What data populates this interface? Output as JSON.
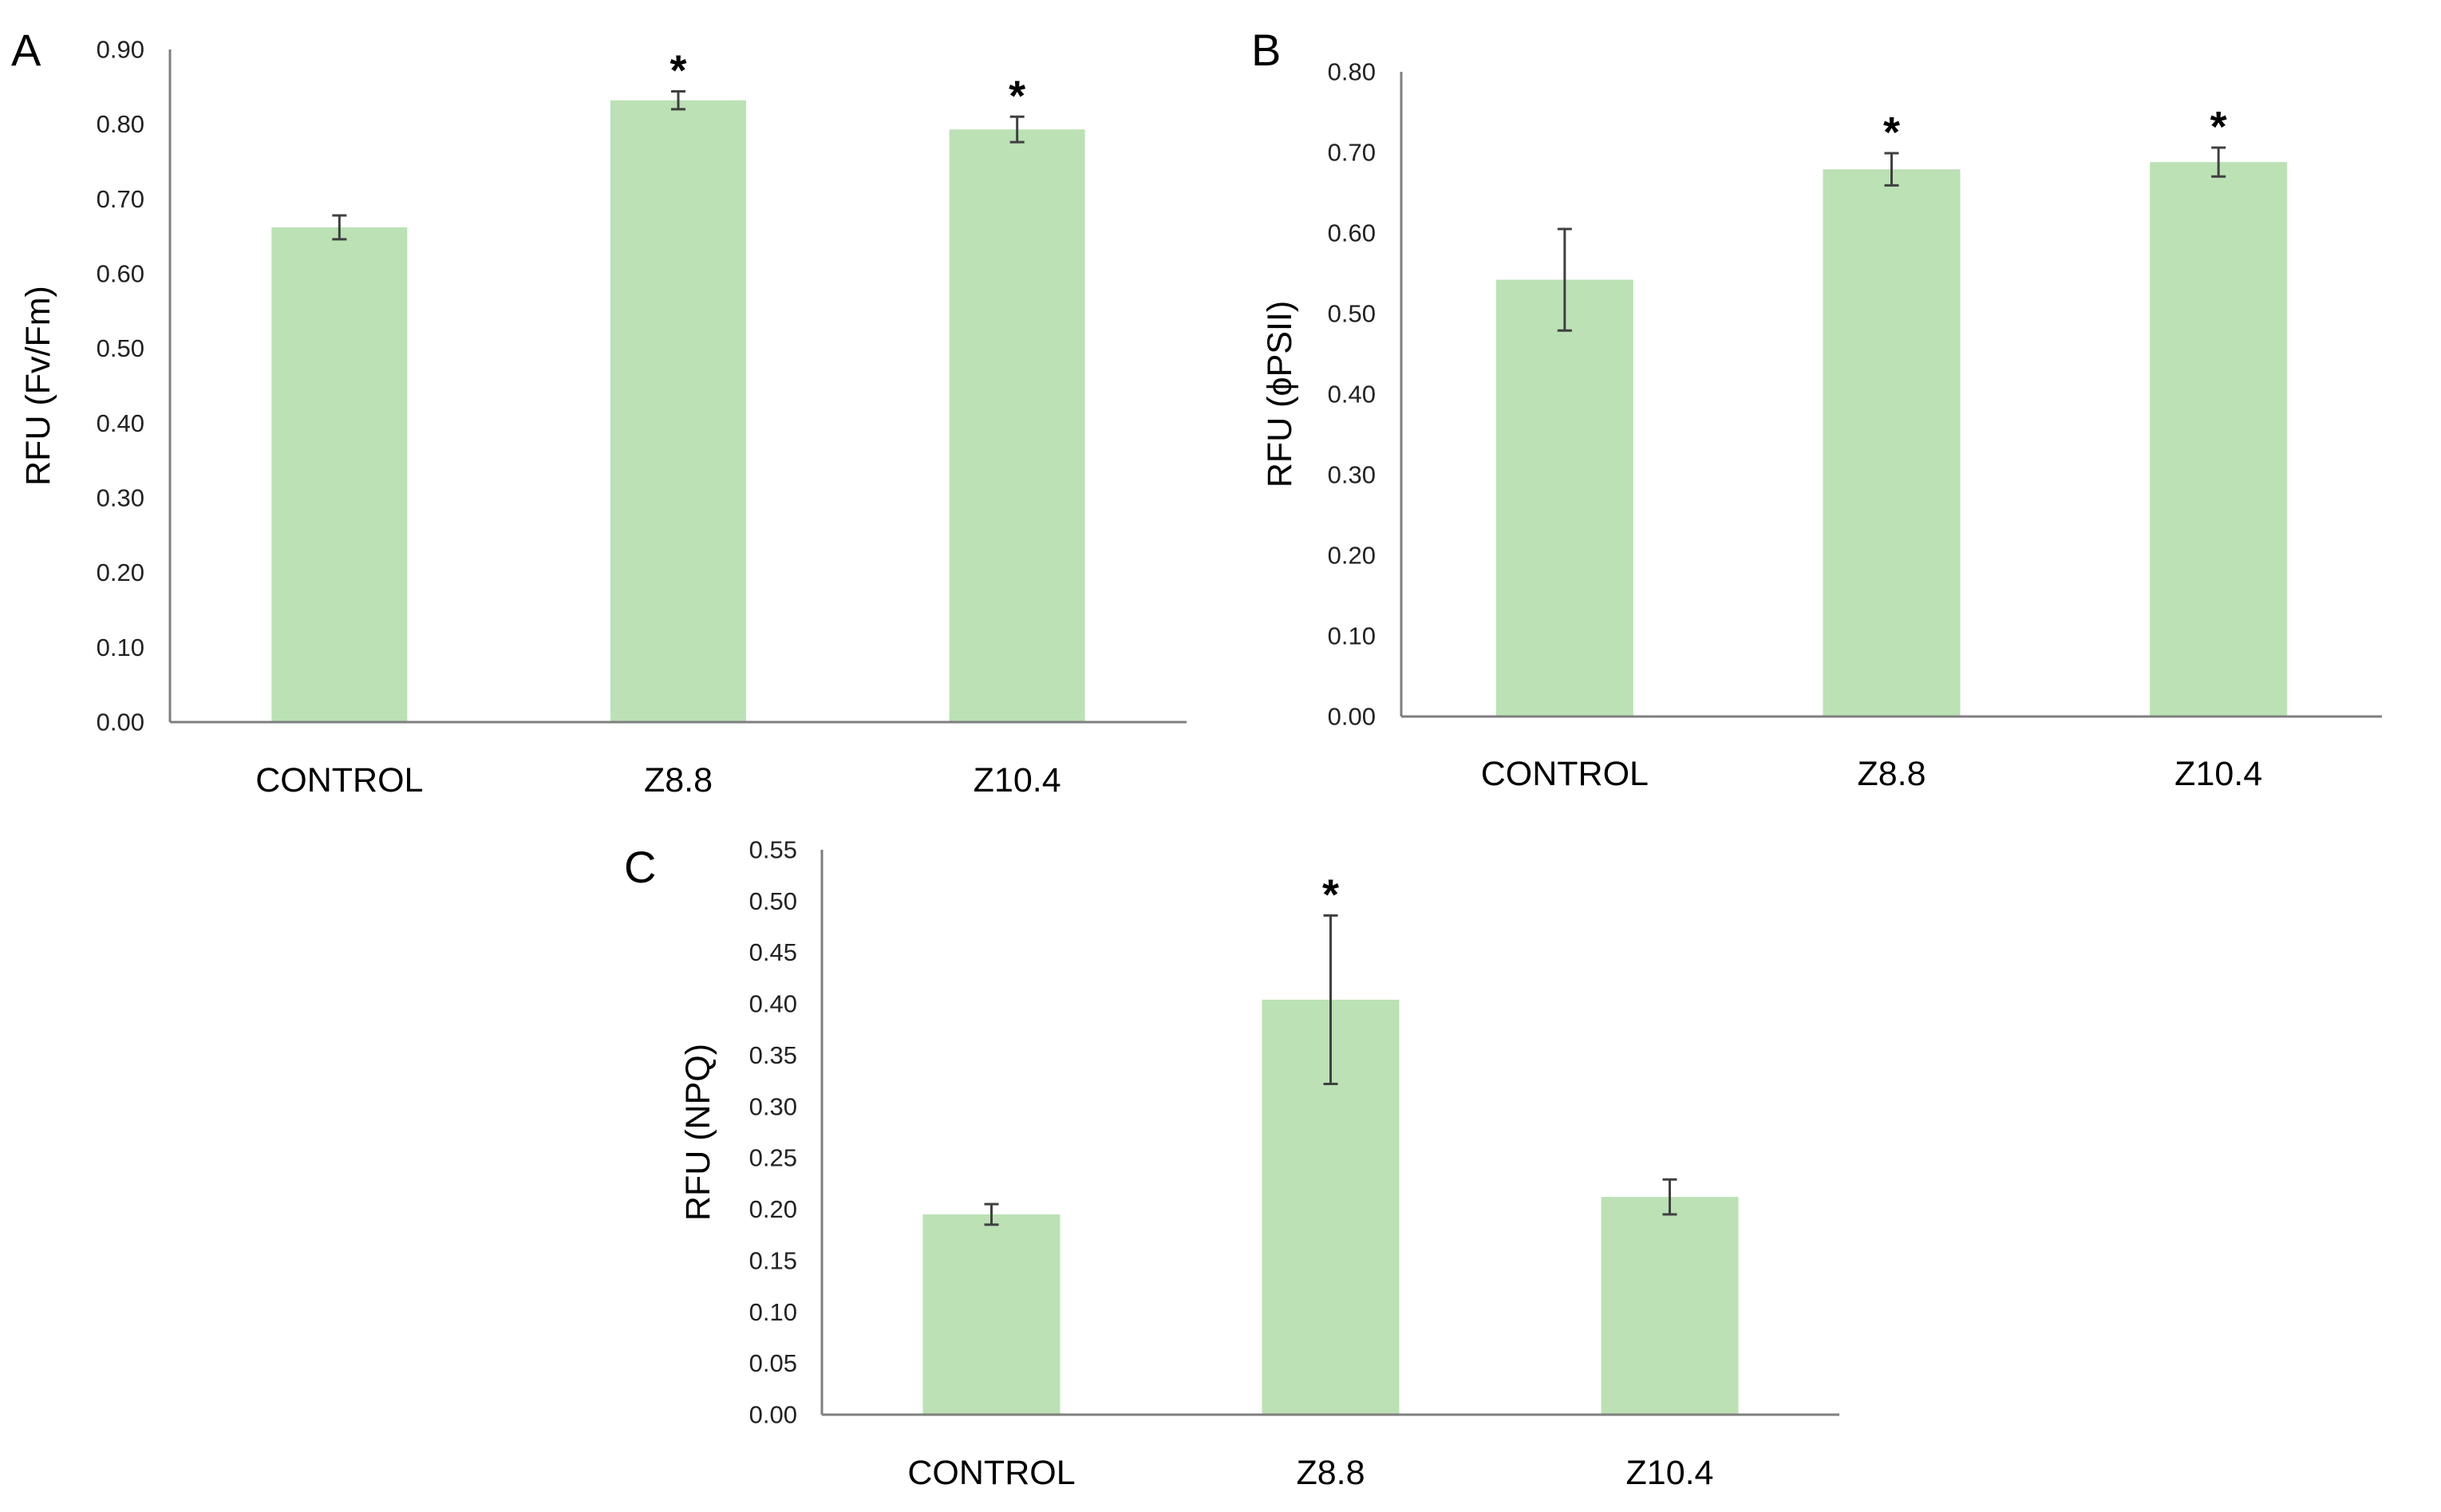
{
  "figure": {
    "bar_color": "#bbe1b5",
    "axis_color": "#7f7f7f",
    "error_color": "#404040"
  },
  "chart_data": [
    {
      "type": "bar",
      "panel": "A",
      "title": "",
      "xlabel": "",
      "ylabel": "RFU (Fv/Fm)",
      "categories": [
        "CONTROL",
        "Z8.8",
        "Z10.4"
      ],
      "values": [
        0.662,
        0.832,
        0.793
      ],
      "errors": [
        0.016,
        0.012,
        0.017
      ],
      "significance": [
        "",
        "*",
        "*"
      ],
      "ylim": [
        0,
        0.9
      ],
      "yticks": [
        "0.00",
        "0.10",
        "0.20",
        "0.30",
        "0.40",
        "0.50",
        "0.60",
        "0.70",
        "0.80",
        "0.90"
      ],
      "grid": false
    },
    {
      "type": "bar",
      "panel": "B",
      "title": "",
      "xlabel": "",
      "ylabel": "RFU (ϕPSII)",
      "categories": [
        "CONTROL",
        "Z8.8",
        "Z10.4"
      ],
      "values": [
        0.542,
        0.679,
        0.688
      ],
      "errors": [
        0.063,
        0.02,
        0.018
      ],
      "significance": [
        "",
        "*",
        "*"
      ],
      "ylim": [
        0,
        0.8
      ],
      "yticks": [
        "0.00",
        "0.10",
        "0.20",
        "0.30",
        "0.40",
        "0.50",
        "0.60",
        "0.70",
        "0.80"
      ],
      "grid": false
    },
    {
      "type": "bar",
      "panel": "C",
      "title": "",
      "xlabel": "",
      "ylabel": "RFU (NPQ)",
      "categories": [
        "CONTROL",
        "Z8.8",
        "Z10.4"
      ],
      "values": [
        0.195,
        0.404,
        0.212
      ],
      "errors": [
        0.01,
        0.082,
        0.017
      ],
      "significance": [
        "",
        "*",
        ""
      ],
      "ylim": [
        0,
        0.55
      ],
      "yticks": [
        "0.00",
        "0.05",
        "0.10",
        "0.15",
        "0.20",
        "0.25",
        "0.30",
        "0.35",
        "0.40",
        "0.45",
        "0.50",
        "0.55"
      ],
      "grid": false
    }
  ]
}
